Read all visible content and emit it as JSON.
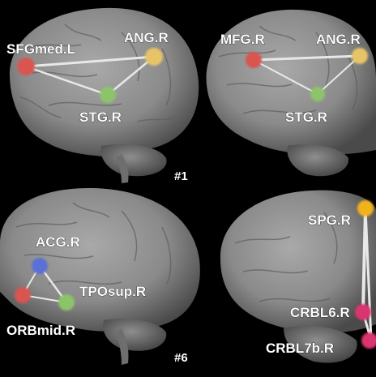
{
  "panels": [
    {
      "nodes": [
        {
          "label": "SFGmed.L",
          "color": "#d9544f"
        },
        {
          "label": "ANG.R",
          "color": "#e8c468"
        },
        {
          "label": "STG.R",
          "color": "#8cc46a"
        }
      ]
    },
    {
      "nodes": [
        {
          "label": "MFG.R",
          "color": "#d9544f"
        },
        {
          "label": "ANG.R",
          "color": "#e8c468"
        },
        {
          "label": "STG.R",
          "color": "#8cc46a"
        }
      ]
    },
    {
      "nodes": [
        {
          "label": "ACG.R",
          "color": "#5a6fd6"
        },
        {
          "label": "TPOsup.R",
          "color": "#8cc46a"
        },
        {
          "label": "ORBmid.R",
          "color": "#d9544f"
        }
      ]
    },
    {
      "nodes": [
        {
          "label": "SPG.R",
          "color": "#f2b21e"
        },
        {
          "label": "CRBL6.R",
          "color": "#d9356f"
        },
        {
          "label": "CRBL7b.R",
          "color": "#d9356f"
        }
      ]
    }
  ],
  "group_labels": [
    "#1",
    "#6"
  ],
  "colors": {
    "background": "#000000",
    "brain": "#8d8d8d",
    "edge": "#e8e8e8"
  }
}
